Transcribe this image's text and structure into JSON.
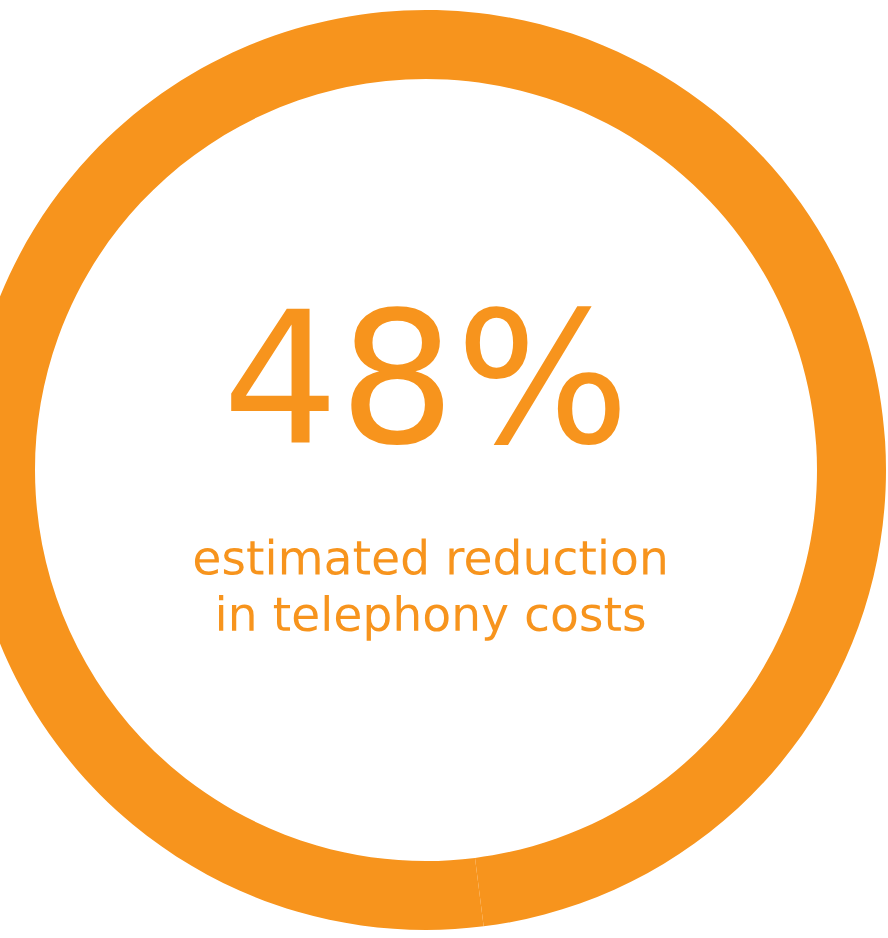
{
  "chart_data": {
    "type": "donut",
    "categories": [
      null,
      null
    ],
    "values": [
      48,
      52
    ],
    "colors": [
      "#f7941d",
      "#f7941d"
    ],
    "value_labels": [
      "48%",
      null
    ],
    "annotations": [
      "estimated reduction\nin telephony costs"
    ]
  }
}
